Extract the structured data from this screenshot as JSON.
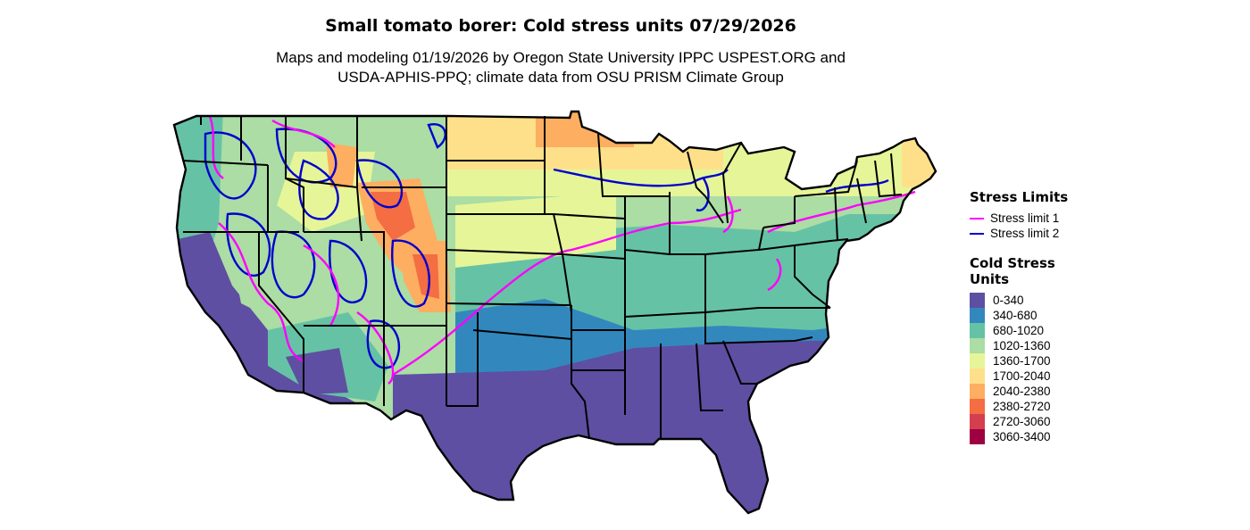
{
  "title": "Small tomato borer: Cold stress units 07/29/2026",
  "subtitle_line1": "Maps and modeling 01/19/2026 by Oregon State University IPPC USPEST.ORG and",
  "subtitle_line2": "USDA-APHIS-PPQ; climate data from OSU PRISM Climate Group",
  "legend": {
    "stress_title": "Stress Limits",
    "stress_items": [
      {
        "label": "Stress limit 1",
        "color": "#ff00ff"
      },
      {
        "label": "Stress limit 2",
        "color": "#0000cd"
      }
    ],
    "fill_title_line1": "Cold Stress",
    "fill_title_line2": "Units",
    "fill_items": [
      {
        "label": "0-340",
        "color": "#5e4fa2"
      },
      {
        "label": "340-680",
        "color": "#3288bd"
      },
      {
        "label": "680-1020",
        "color": "#66c2a5"
      },
      {
        "label": "1020-1360",
        "color": "#abdda4"
      },
      {
        "label": "1360-1700",
        "color": "#e6f598"
      },
      {
        "label": "1700-2040",
        "color": "#fee08b"
      },
      {
        "label": "2040-2380",
        "color": "#fdae61"
      },
      {
        "label": "2380-2720",
        "color": "#f46d43"
      },
      {
        "label": "2720-3060",
        "color": "#d53e4f"
      },
      {
        "label": "3060-3400",
        "color": "#9e0142"
      }
    ]
  }
}
